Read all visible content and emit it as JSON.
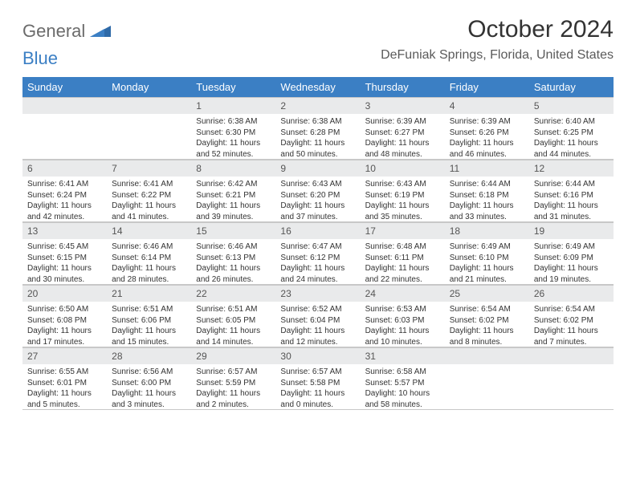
{
  "brand": {
    "part1": "General",
    "part2": "Blue"
  },
  "title": "October 2024",
  "location": "DeFuniak Springs, Florida, United States",
  "colors": {
    "header_bg": "#3b7fc4",
    "header_text": "#ffffff",
    "daynum_bg": "#e9eaeb",
    "border": "#c8c8c8",
    "page_bg": "#ffffff"
  },
  "weekdays": [
    "Sunday",
    "Monday",
    "Tuesday",
    "Wednesday",
    "Thursday",
    "Friday",
    "Saturday"
  ],
  "weeks": [
    [
      null,
      null,
      {
        "n": "1",
        "sunrise": "Sunrise: 6:38 AM",
        "sunset": "Sunset: 6:30 PM",
        "daylight": "Daylight: 11 hours and 52 minutes."
      },
      {
        "n": "2",
        "sunrise": "Sunrise: 6:38 AM",
        "sunset": "Sunset: 6:28 PM",
        "daylight": "Daylight: 11 hours and 50 minutes."
      },
      {
        "n": "3",
        "sunrise": "Sunrise: 6:39 AM",
        "sunset": "Sunset: 6:27 PM",
        "daylight": "Daylight: 11 hours and 48 minutes."
      },
      {
        "n": "4",
        "sunrise": "Sunrise: 6:39 AM",
        "sunset": "Sunset: 6:26 PM",
        "daylight": "Daylight: 11 hours and 46 minutes."
      },
      {
        "n": "5",
        "sunrise": "Sunrise: 6:40 AM",
        "sunset": "Sunset: 6:25 PM",
        "daylight": "Daylight: 11 hours and 44 minutes."
      }
    ],
    [
      {
        "n": "6",
        "sunrise": "Sunrise: 6:41 AM",
        "sunset": "Sunset: 6:24 PM",
        "daylight": "Daylight: 11 hours and 42 minutes."
      },
      {
        "n": "7",
        "sunrise": "Sunrise: 6:41 AM",
        "sunset": "Sunset: 6:22 PM",
        "daylight": "Daylight: 11 hours and 41 minutes."
      },
      {
        "n": "8",
        "sunrise": "Sunrise: 6:42 AM",
        "sunset": "Sunset: 6:21 PM",
        "daylight": "Daylight: 11 hours and 39 minutes."
      },
      {
        "n": "9",
        "sunrise": "Sunrise: 6:43 AM",
        "sunset": "Sunset: 6:20 PM",
        "daylight": "Daylight: 11 hours and 37 minutes."
      },
      {
        "n": "10",
        "sunrise": "Sunrise: 6:43 AM",
        "sunset": "Sunset: 6:19 PM",
        "daylight": "Daylight: 11 hours and 35 minutes."
      },
      {
        "n": "11",
        "sunrise": "Sunrise: 6:44 AM",
        "sunset": "Sunset: 6:18 PM",
        "daylight": "Daylight: 11 hours and 33 minutes."
      },
      {
        "n": "12",
        "sunrise": "Sunrise: 6:44 AM",
        "sunset": "Sunset: 6:16 PM",
        "daylight": "Daylight: 11 hours and 31 minutes."
      }
    ],
    [
      {
        "n": "13",
        "sunrise": "Sunrise: 6:45 AM",
        "sunset": "Sunset: 6:15 PM",
        "daylight": "Daylight: 11 hours and 30 minutes."
      },
      {
        "n": "14",
        "sunrise": "Sunrise: 6:46 AM",
        "sunset": "Sunset: 6:14 PM",
        "daylight": "Daylight: 11 hours and 28 minutes."
      },
      {
        "n": "15",
        "sunrise": "Sunrise: 6:46 AM",
        "sunset": "Sunset: 6:13 PM",
        "daylight": "Daylight: 11 hours and 26 minutes."
      },
      {
        "n": "16",
        "sunrise": "Sunrise: 6:47 AM",
        "sunset": "Sunset: 6:12 PM",
        "daylight": "Daylight: 11 hours and 24 minutes."
      },
      {
        "n": "17",
        "sunrise": "Sunrise: 6:48 AM",
        "sunset": "Sunset: 6:11 PM",
        "daylight": "Daylight: 11 hours and 22 minutes."
      },
      {
        "n": "18",
        "sunrise": "Sunrise: 6:49 AM",
        "sunset": "Sunset: 6:10 PM",
        "daylight": "Daylight: 11 hours and 21 minutes."
      },
      {
        "n": "19",
        "sunrise": "Sunrise: 6:49 AM",
        "sunset": "Sunset: 6:09 PM",
        "daylight": "Daylight: 11 hours and 19 minutes."
      }
    ],
    [
      {
        "n": "20",
        "sunrise": "Sunrise: 6:50 AM",
        "sunset": "Sunset: 6:08 PM",
        "daylight": "Daylight: 11 hours and 17 minutes."
      },
      {
        "n": "21",
        "sunrise": "Sunrise: 6:51 AM",
        "sunset": "Sunset: 6:06 PM",
        "daylight": "Daylight: 11 hours and 15 minutes."
      },
      {
        "n": "22",
        "sunrise": "Sunrise: 6:51 AM",
        "sunset": "Sunset: 6:05 PM",
        "daylight": "Daylight: 11 hours and 14 minutes."
      },
      {
        "n": "23",
        "sunrise": "Sunrise: 6:52 AM",
        "sunset": "Sunset: 6:04 PM",
        "daylight": "Daylight: 11 hours and 12 minutes."
      },
      {
        "n": "24",
        "sunrise": "Sunrise: 6:53 AM",
        "sunset": "Sunset: 6:03 PM",
        "daylight": "Daylight: 11 hours and 10 minutes."
      },
      {
        "n": "25",
        "sunrise": "Sunrise: 6:54 AM",
        "sunset": "Sunset: 6:02 PM",
        "daylight": "Daylight: 11 hours and 8 minutes."
      },
      {
        "n": "26",
        "sunrise": "Sunrise: 6:54 AM",
        "sunset": "Sunset: 6:02 PM",
        "daylight": "Daylight: 11 hours and 7 minutes."
      }
    ],
    [
      {
        "n": "27",
        "sunrise": "Sunrise: 6:55 AM",
        "sunset": "Sunset: 6:01 PM",
        "daylight": "Daylight: 11 hours and 5 minutes."
      },
      {
        "n": "28",
        "sunrise": "Sunrise: 6:56 AM",
        "sunset": "Sunset: 6:00 PM",
        "daylight": "Daylight: 11 hours and 3 minutes."
      },
      {
        "n": "29",
        "sunrise": "Sunrise: 6:57 AM",
        "sunset": "Sunset: 5:59 PM",
        "daylight": "Daylight: 11 hours and 2 minutes."
      },
      {
        "n": "30",
        "sunrise": "Sunrise: 6:57 AM",
        "sunset": "Sunset: 5:58 PM",
        "daylight": "Daylight: 11 hours and 0 minutes."
      },
      {
        "n": "31",
        "sunrise": "Sunrise: 6:58 AM",
        "sunset": "Sunset: 5:57 PM",
        "daylight": "Daylight: 10 hours and 58 minutes."
      },
      null,
      null
    ]
  ]
}
